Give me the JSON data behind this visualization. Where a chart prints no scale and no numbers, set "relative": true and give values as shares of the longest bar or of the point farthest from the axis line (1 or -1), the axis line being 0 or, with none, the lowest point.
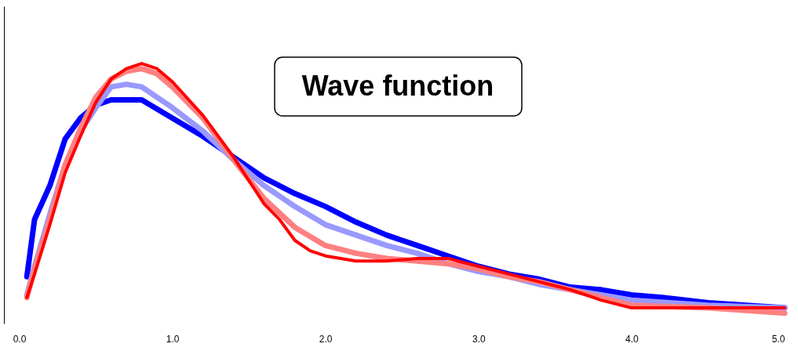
{
  "chart_data": {
    "type": "line",
    "relative": true,
    "grid": false,
    "marker": "none",
    "line_style": "solid",
    "annotations": [
      "Wave function"
    ],
    "xlim": [
      -0.1,
      5.0
    ],
    "xticks": [
      {
        "value": 0,
        "label": "0.0"
      },
      {
        "value": 1,
        "label": "1.0"
      },
      {
        "value": 2,
        "label": "2.0"
      },
      {
        "value": 3,
        "label": "3.0"
      },
      {
        "value": 4,
        "label": "4.0"
      },
      {
        "value": 5,
        "label": "5.0"
      }
    ],
    "series": [
      {
        "color": "#0000ff",
        "x": [
          0.05,
          0.1,
          0.2,
          0.3,
          0.4,
          0.5,
          0.6,
          0.8,
          1.0,
          1.2,
          1.4,
          1.6,
          1.8,
          2.0,
          2.2,
          2.4,
          2.6,
          2.8,
          3.0,
          3.2,
          3.4,
          3.6,
          3.8,
          4.0,
          4.2,
          4.5,
          5.0
        ],
        "values": [
          0.18,
          0.4,
          0.53,
          0.71,
          0.79,
          0.84,
          0.86,
          0.86,
          0.79,
          0.72,
          0.64,
          0.56,
          0.5,
          0.45,
          0.39,
          0.34,
          0.3,
          0.26,
          0.22,
          0.19,
          0.17,
          0.14,
          0.13,
          0.11,
          0.1,
          0.08,
          0.06
        ]
      },
      {
        "color": "#9999ff",
        "x": [
          0.05,
          0.1,
          0.2,
          0.3,
          0.4,
          0.5,
          0.6,
          0.7,
          0.8,
          1.0,
          1.2,
          1.4,
          1.6,
          1.8,
          2.0,
          2.2,
          2.4,
          2.6,
          2.8,
          3.0,
          3.2,
          3.4,
          3.6,
          3.8,
          4.0,
          4.5,
          5.0
        ],
        "values": [
          0.11,
          0.22,
          0.42,
          0.61,
          0.74,
          0.83,
          0.91,
          0.92,
          0.91,
          0.83,
          0.74,
          0.63,
          0.53,
          0.45,
          0.38,
          0.34,
          0.3,
          0.27,
          0.23,
          0.2,
          0.18,
          0.15,
          0.13,
          0.11,
          0.09,
          0.07,
          0.06
        ]
      },
      {
        "color": "#ff8080",
        "x": [
          0.05,
          0.1,
          0.2,
          0.3,
          0.4,
          0.5,
          0.6,
          0.7,
          0.8,
          0.9,
          1.0,
          1.2,
          1.4,
          1.6,
          1.8,
          2.0,
          2.2,
          2.4,
          2.6,
          2.8,
          3.0,
          3.2,
          3.4,
          3.6,
          3.8,
          4.0,
          4.5,
          5.0
        ],
        "values": [
          0.1,
          0.21,
          0.4,
          0.61,
          0.75,
          0.87,
          0.94,
          0.97,
          0.98,
          0.96,
          0.91,
          0.79,
          0.63,
          0.48,
          0.37,
          0.3,
          0.27,
          0.25,
          0.24,
          0.23,
          0.21,
          0.18,
          0.16,
          0.13,
          0.1,
          0.07,
          0.06,
          0.04
        ]
      },
      {
        "color": "#ff0000",
        "x": [
          0.05,
          0.1,
          0.2,
          0.3,
          0.4,
          0.5,
          0.6,
          0.7,
          0.8,
          0.9,
          1.0,
          1.2,
          1.4,
          1.6,
          1.7,
          1.8,
          1.9,
          2.0,
          2.2,
          2.4,
          2.6,
          2.8,
          3.0,
          3.2,
          3.4,
          3.6,
          3.8,
          4.0,
          4.5,
          5.0
        ],
        "values": [
          0.1,
          0.19,
          0.38,
          0.58,
          0.72,
          0.85,
          0.94,
          0.98,
          1.0,
          0.98,
          0.93,
          0.8,
          0.64,
          0.46,
          0.4,
          0.32,
          0.28,
          0.26,
          0.24,
          0.24,
          0.25,
          0.25,
          0.22,
          0.19,
          0.16,
          0.13,
          0.09,
          0.06,
          0.06,
          0.06
        ]
      }
    ]
  }
}
